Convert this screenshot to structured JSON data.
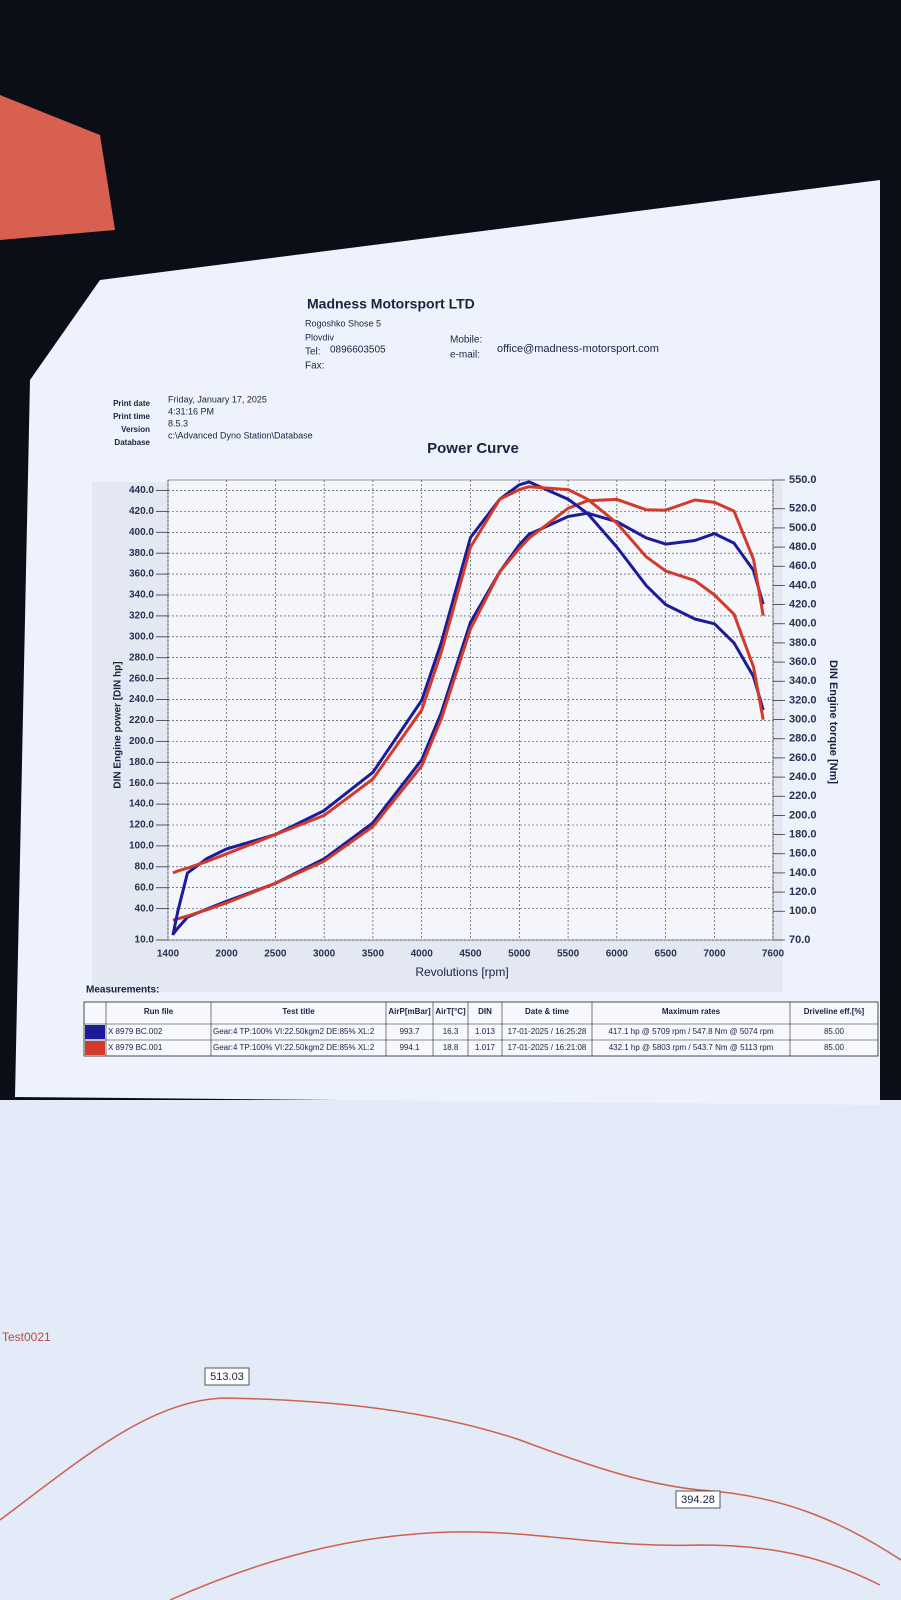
{
  "header": {
    "company": "Madness Motorsport LTD",
    "address": [
      "Rogoshko Shose 5",
      "Plovdiv"
    ],
    "tel_label": "Tel:",
    "tel": "0896603505",
    "fax_label": "Fax:",
    "mobile_label": "Mobile:",
    "email_label": "e-mail:",
    "email": "office@madness-motorsport.com"
  },
  "print_info": [
    [
      "Print date",
      "Friday, January 17, 2025"
    ],
    [
      "Print time",
      "4:31:16 PM"
    ],
    [
      "Version",
      "8.5.3"
    ],
    [
      "Database",
      "c:\\Advanced Dyno Station\\Database"
    ]
  ],
  "chart_data": {
    "type": "line",
    "title": "Power Curve",
    "x_label": "Revolutions [rpm]",
    "y_label": "DIN Engine power [DIN hp]",
    "y2_label": "DIN Engine torque [Nm]",
    "grid": true,
    "xlim": [
      1400,
      7600
    ],
    "xticks": [
      1400,
      2000,
      2500,
      3000,
      3500,
      4000,
      4500,
      5000,
      5500,
      6000,
      6500,
      7000,
      7600
    ],
    "ylim": [
      10,
      450
    ],
    "yticks": [
      {
        "value": 10,
        "label": "10.0"
      },
      {
        "value": 40,
        "label": "40.0"
      },
      {
        "value": 60,
        "label": "60.0"
      },
      {
        "value": 80,
        "label": "80.0"
      },
      {
        "value": 100,
        "label": "100.0"
      },
      {
        "value": 120,
        "label": "120.0"
      },
      {
        "value": 140,
        "label": "140.0"
      },
      {
        "value": 160,
        "label": "160.0"
      },
      {
        "value": 180,
        "label": "180.0"
      },
      {
        "value": 200,
        "label": "200.0"
      },
      {
        "value": 220,
        "label": "220.0"
      },
      {
        "value": 240,
        "label": "240.0"
      },
      {
        "value": 260,
        "label": "260.0"
      },
      {
        "value": 280,
        "label": "280.0"
      },
      {
        "value": 300,
        "label": "300.0"
      },
      {
        "value": 320,
        "label": "320.0"
      },
      {
        "value": 340,
        "label": "340.0"
      },
      {
        "value": 360,
        "label": "360.0"
      },
      {
        "value": 380,
        "label": "380.0"
      },
      {
        "value": 400,
        "label": "400.0"
      },
      {
        "value": 420,
        "label": "420.0"
      },
      {
        "value": 440,
        "label": "440.0"
      }
    ],
    "y2lim": [
      70,
      550
    ],
    "y2ticks": [
      {
        "value": 70,
        "label": "70.0"
      },
      {
        "value": 100,
        "label": "100.0"
      },
      {
        "value": 120,
        "label": "120.0"
      },
      {
        "value": 140,
        "label": "140.0"
      },
      {
        "value": 160,
        "label": "160.0"
      },
      {
        "value": 180,
        "label": "180.0"
      },
      {
        "value": 200,
        "label": "200.0"
      },
      {
        "value": 220,
        "label": "220.0"
      },
      {
        "value": 240,
        "label": "240.0"
      },
      {
        "value": 260,
        "label": "260.0"
      },
      {
        "value": 280,
        "label": "280.0"
      },
      {
        "value": 300,
        "label": "300.0"
      },
      {
        "value": 320,
        "label": "320.0"
      },
      {
        "value": 340,
        "label": "340.0"
      },
      {
        "value": 360,
        "label": "360.0"
      },
      {
        "value": 380,
        "label": "380.0"
      },
      {
        "value": 400,
        "label": "400.0"
      },
      {
        "value": 420,
        "label": "420.0"
      },
      {
        "value": 440,
        "label": "440.0"
      },
      {
        "value": 460,
        "label": "460.0"
      },
      {
        "value": 480,
        "label": "480.0"
      },
      {
        "value": 500,
        "label": "500.0"
      },
      {
        "value": 520,
        "label": "520.0"
      },
      {
        "value": 550,
        "label": "550.0"
      }
    ],
    "x": [
      1450,
      1500,
      1600,
      1800,
      2000,
      2500,
      3000,
      3500,
      4000,
      4200,
      4500,
      4800,
      5000,
      5100,
      5500,
      5700,
      6000,
      6300,
      6500,
      6800,
      7000,
      7200,
      7400,
      7500
    ],
    "series": [
      {
        "color": "#1c1c9a",
        "values": [
          15.5,
          21.4,
          31.9,
          39.7,
          47.0,
          64.1,
          87.6,
          122.1,
          182.3,
          227.2,
          314.0,
          362.2,
          388.0,
          398.0,
          415.1,
          418.2,
          410.1,
          394.7,
          388.7,
          392.1,
          398.7,
          389.6,
          363.5,
          331.1
        ]
      },
      {
        "color": "#d23a2a",
        "values": [
          28.9,
          30.3,
          33.0,
          39.0,
          45.6,
          64.1,
          85.4,
          118.6,
          176.6,
          221.3,
          307.6,
          362.3,
          384.4,
          394.3,
          422.9,
          430.2,
          431.4,
          421.6,
          421.1,
          430.9,
          428.6,
          420.3,
          374.1,
          320.3
        ]
      },
      {
        "color": "#1c1c9a",
        "axis": "y2",
        "values": [
          75,
          100,
          140,
          155,
          165,
          180,
          205,
          245,
          320,
          380,
          490,
          530,
          545,
          548,
          530,
          515,
          480,
          440,
          420,
          405,
          400,
          380,
          345,
          310
        ]
      },
      {
        "color": "#d23a2a",
        "axis": "y2",
        "values": [
          140,
          142,
          145,
          152,
          160,
          180,
          200,
          238,
          310,
          370,
          480,
          530,
          540,
          543,
          540,
          530,
          505,
          470,
          455,
          445,
          430,
          410,
          355,
          300
        ]
      }
    ]
  },
  "table": {
    "title": "Measurements:",
    "columns": [
      "Run file",
      "Test title",
      "AirP[mBar]",
      "AirT[°C]",
      "DIN",
      "Date & time",
      "Maximum rates",
      "Driveline eff.[%]"
    ],
    "rows": [
      {
        "color": "#1c1c9a",
        "cells": [
          "X 8979 BC.002",
          "Gear:4 TP:100% VI:22.50kgm2 DE:85% XL:2",
          "993.7",
          "16.3",
          "1.013",
          "17-01-2025 / 16:25:28",
          "417.1 hp @ 5709 rpm / 547.8 Nm @ 5074 rpm",
          "85.00"
        ]
      },
      {
        "color": "#d23a2a",
        "cells": [
          "X 8979 BC.001",
          "Gear:4 TP:100% VI:22.50kgm2 DE:85% XL:2",
          "994.1",
          "18.8",
          "1.017",
          "17-01-2025 / 16:21:08",
          "432.1 hp @ 5803 rpm / 543.7 Nm @ 5113 rpm",
          "85.00"
        ]
      }
    ]
  },
  "second_sheet": {
    "title": "Test0021",
    "callouts": [
      "513.03",
      "394.28"
    ]
  }
}
